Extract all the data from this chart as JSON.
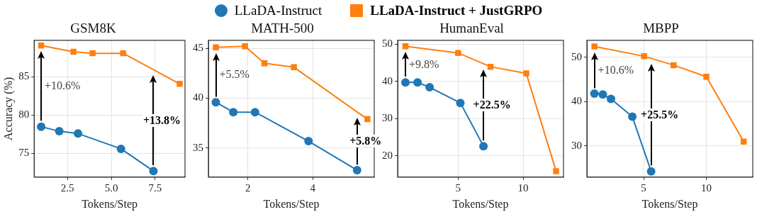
{
  "chart_data": [
    {
      "type": "line",
      "title": "GSM8K",
      "xlabel": "Tokens/Step",
      "ylabel": "Accuracy (%)",
      "legend": "top",
      "grid": true,
      "xlim": [
        0.6,
        9.2
      ],
      "xticks": [
        2.5,
        {
          "value": 5,
          "label": "5.0"
        },
        7.5
      ],
      "ylim": [
        71.9,
        89.8
      ],
      "yticks": [
        75,
        80,
        85
      ],
      "series": [
        {
          "name": "LLaDA-Instruct",
          "color": "#1f77b4",
          "marker": "circle",
          "x": [
            1.0,
            2.03,
            3.1,
            5.55,
            7.4
          ],
          "values": [
            78.5,
            77.9,
            77.6,
            75.6,
            72.7
          ]
        },
        {
          "name": "LLaDA-Instruct + JustGRPO",
          "color": "#ff7f0e",
          "marker": "square",
          "x": [
            1.0,
            2.84,
            3.93,
            5.67,
            8.9
          ],
          "values": [
            89.1,
            88.3,
            88.1,
            88.1,
            84.1
          ]
        }
      ],
      "annotations": [
        "+10.6%",
        "+13.8%"
      ]
    },
    {
      "type": "line",
      "title": "MATH-500",
      "xlabel": "Tokens/Step",
      "grid": true,
      "xlim": [
        0.78,
        5.9
      ],
      "xticks": [
        2,
        4
      ],
      "ylim": [
        32.1,
        45.8
      ],
      "yticks": [
        35,
        40,
        45
      ],
      "series": [
        {
          "color": "#1f77b4",
          "marker": "circle",
          "x": [
            1.01,
            1.55,
            2.22,
            3.87,
            5.37
          ],
          "values": [
            39.6,
            38.6,
            38.6,
            35.7,
            32.8
          ]
        },
        {
          "color": "#ff7f0e",
          "marker": "square",
          "x": [
            1.01,
            1.91,
            2.51,
            3.42,
            5.69
          ],
          "values": [
            45.1,
            45.2,
            43.5,
            43.1,
            37.9
          ]
        }
      ],
      "annotations": [
        "+5.5%",
        {
          "text": "+5.8%",
          "x": 5.37,
          "y": 32.8
        }
      ]
    },
    {
      "type": "line",
      "title": "HumanEval",
      "xlabel": "Tokens/Step",
      "grid": true,
      "xlim": [
        0.35,
        13.1
      ],
      "xticks": [
        5,
        10
      ],
      "ylim": [
        14.3,
        51.0
      ],
      "yticks": [
        20,
        30,
        40,
        50
      ],
      "series": [
        {
          "color": "#1f77b4",
          "marker": "circle",
          "x": [
            0.95,
            1.88,
            2.81,
            5.17,
            6.95
          ],
          "values": [
            39.7,
            39.7,
            38.4,
            34.2,
            22.6
          ]
        },
        {
          "color": "#ff7f0e",
          "marker": "square",
          "x": [
            0.95,
            5.0,
            7.49,
            10.24,
            12.53
          ],
          "values": [
            49.4,
            47.6,
            43.9,
            42.1,
            15.9
          ]
        }
      ],
      "annotations": [
        "+9.8%",
        "+22.5%"
      ]
    },
    {
      "type": "line",
      "title": "MBPP",
      "xlabel": "Tokens/Step",
      "grid": true,
      "xlim": [
        0.48,
        13.7
      ],
      "xticks": [
        5,
        10
      ],
      "ylim": [
        23.0,
        53.8
      ],
      "yticks": [
        30,
        40,
        50
      ],
      "series": [
        {
          "color": "#1f77b4",
          "marker": "circle",
          "x": [
            1.08,
            1.75,
            2.4,
            4.1,
            5.6
          ],
          "values": [
            41.8,
            41.6,
            40.6,
            36.6,
            24.3
          ]
        },
        {
          "color": "#ff7f0e",
          "marker": "square",
          "x": [
            1.08,
            5.04,
            7.39,
            10.0,
            12.98
          ],
          "values": [
            52.4,
            50.2,
            48.2,
            45.6,
            31.0
          ]
        }
      ],
      "annotations": [
        "+10.6%",
        "+25.5%"
      ]
    }
  ]
}
